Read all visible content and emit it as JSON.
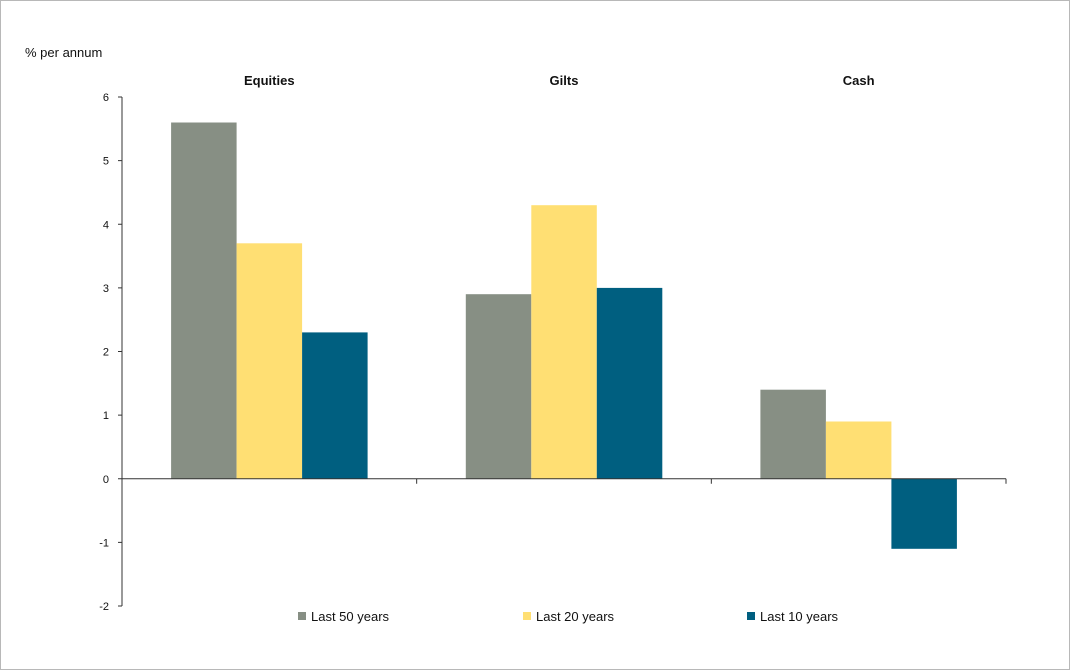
{
  "chart_data": {
    "type": "bar",
    "ylabel": "% per annum",
    "categories": [
      "Equities",
      "Gilts",
      "Cash"
    ],
    "series": [
      {
        "name": "Last 50 years",
        "color": "#878f84",
        "values": [
          5.6,
          2.9,
          1.4
        ]
      },
      {
        "name": "Last 20 years",
        "color": "#ffdf73",
        "values": [
          3.7,
          4.3,
          0.9
        ]
      },
      {
        "name": "Last 10 years",
        "color": "#005f80",
        "values": [
          2.3,
          3.0,
          -1.1
        ]
      }
    ],
    "ylim": [
      -2,
      6
    ],
    "yticks": [
      "-2",
      "-1",
      "0",
      "1",
      "2",
      "3",
      "4",
      "5",
      "6"
    ],
    "grid": false,
    "legend_position": "bottom"
  }
}
